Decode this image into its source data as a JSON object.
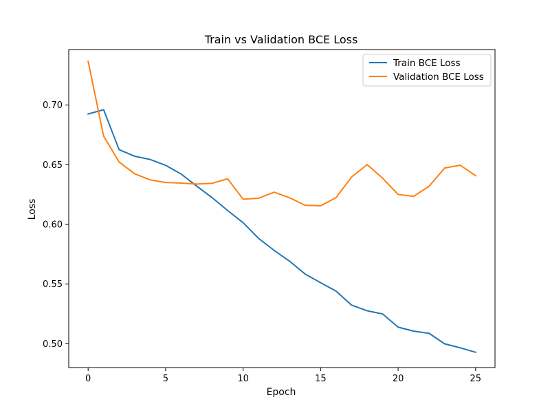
{
  "chart_data": {
    "type": "line",
    "title": "Train vs Validation BCE Loss",
    "xlabel": "Epoch",
    "ylabel": "Loss",
    "xlim": [
      -1.25,
      26.25
    ],
    "ylim": [
      0.48,
      0.7465
    ],
    "xticks": [
      0,
      5,
      10,
      15,
      20,
      25
    ],
    "xtick_labels": [
      "0",
      "5",
      "10",
      "15",
      "20",
      "25"
    ],
    "yticks": [
      0.5,
      0.55,
      0.6,
      0.65,
      0.7
    ],
    "ytick_labels": [
      "0.50",
      "0.55",
      "0.60",
      "0.65",
      "0.70"
    ],
    "grid": false,
    "legend_position": "top-right",
    "x": [
      0,
      1,
      2,
      3,
      4,
      5,
      6,
      7,
      8,
      9,
      10,
      11,
      12,
      13,
      14,
      15,
      16,
      17,
      18,
      19,
      20,
      21,
      22,
      23,
      24,
      25
    ],
    "series": [
      {
        "name": "Train BCE Loss",
        "color": "#1f77b4",
        "values": [
          0.6925,
          0.6961,
          0.6626,
          0.6571,
          0.6544,
          0.6495,
          0.6422,
          0.6321,
          0.6224,
          0.6116,
          0.6014,
          0.5882,
          0.5782,
          0.5691,
          0.5584,
          0.5511,
          0.544,
          0.5323,
          0.5276,
          0.5249,
          0.5139,
          0.5105,
          0.5087,
          0.4999,
          0.4966,
          0.4928
        ]
      },
      {
        "name": "Validation BCE Loss",
        "color": "#ff7f0e",
        "values": [
          0.7367,
          0.674,
          0.6522,
          0.6424,
          0.6373,
          0.6351,
          0.6346,
          0.6338,
          0.6344,
          0.6382,
          0.6211,
          0.6219,
          0.627,
          0.6223,
          0.616,
          0.6156,
          0.6225,
          0.6397,
          0.6501,
          0.6387,
          0.6251,
          0.6235,
          0.632,
          0.6472,
          0.6496,
          0.6408
        ]
      }
    ]
  }
}
